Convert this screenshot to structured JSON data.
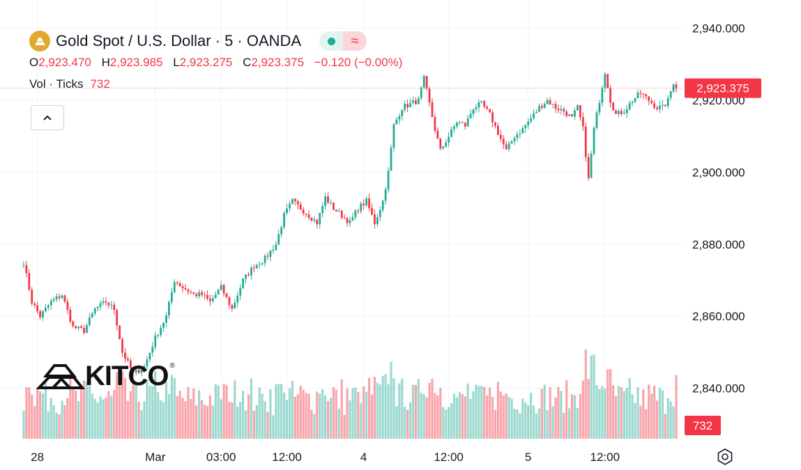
{
  "header": {
    "title": "Gold Spot / U.S. Dollar · 5 · OANDA",
    "ohlc": [
      {
        "label": "O",
        "value": "2,923.470"
      },
      {
        "label": "H",
        "value": "2,923.985"
      },
      {
        "label": "L",
        "value": "2,923.275"
      },
      {
        "label": "C",
        "value": "2,923.375"
      }
    ],
    "change": "−0.120 (−0.00%)",
    "volume_label": "Vol · Ticks",
    "volume_value": "732"
  },
  "logo": {
    "text": "KITCO",
    "reg": "®"
  },
  "colors": {
    "up": "#22ab94",
    "down": "#f23645",
    "grid": "#f0f3fa",
    "axis_text": "#131722"
  },
  "chart_data": {
    "type": "candlestick",
    "title": "Gold Spot / U.S. Dollar · 5 · OANDA",
    "ylim": [
      2826,
      2944
    ],
    "y_ticks": [
      {
        "value": 2940,
        "label": "2,940.000"
      },
      {
        "value": 2920,
        "label": "2,920.000"
      },
      {
        "value": 2900,
        "label": "2,900.000"
      },
      {
        "value": 2880,
        "label": "2,880.000"
      },
      {
        "value": 2860,
        "label": "2,860.000"
      },
      {
        "value": 2840,
        "label": "2,840.000"
      }
    ],
    "x_ticks": [
      {
        "index": 5,
        "label": "28"
      },
      {
        "index": 48,
        "label": "Mar"
      },
      {
        "index": 72,
        "label": "03:00"
      },
      {
        "index": 96,
        "label": "12:00"
      },
      {
        "index": 124,
        "label": "4"
      },
      {
        "index": 155,
        "label": "12:00"
      },
      {
        "index": 184,
        "label": "5"
      },
      {
        "index": 212,
        "label": "12:00"
      }
    ],
    "last_price": {
      "value": 2923.375,
      "label": "2,923.375"
    },
    "last_volume": {
      "value": 732,
      "label": "732"
    },
    "volume_max": 1600,
    "close_path": [
      [
        0,
        2875
      ],
      [
        3,
        2864
      ],
      [
        6,
        2860
      ],
      [
        10,
        2864
      ],
      [
        14,
        2866
      ],
      [
        18,
        2857
      ],
      [
        22,
        2856
      ],
      [
        26,
        2862
      ],
      [
        30,
        2864
      ],
      [
        33,
        2862
      ],
      [
        36,
        2850
      ],
      [
        40,
        2844
      ],
      [
        44,
        2846
      ],
      [
        48,
        2854
      ],
      [
        52,
        2860
      ],
      [
        55,
        2870
      ],
      [
        58,
        2868
      ],
      [
        62,
        2866
      ],
      [
        65,
        2866
      ],
      [
        68,
        2864
      ],
      [
        72,
        2868
      ],
      [
        76,
        2862
      ],
      [
        80,
        2870
      ],
      [
        84,
        2874
      ],
      [
        88,
        2876
      ],
      [
        92,
        2880
      ],
      [
        95,
        2888
      ],
      [
        98,
        2892
      ],
      [
        101,
        2890
      ],
      [
        104,
        2888
      ],
      [
        107,
        2886
      ],
      [
        110,
        2893
      ],
      [
        113,
        2890
      ],
      [
        116,
        2888
      ],
      [
        119,
        2886
      ],
      [
        122,
        2890
      ],
      [
        125,
        2892
      ],
      [
        128,
        2886
      ],
      [
        131,
        2892
      ],
      [
        133,
        2900
      ],
      [
        135,
        2913
      ],
      [
        138,
        2918
      ],
      [
        141,
        2919
      ],
      [
        144,
        2920
      ],
      [
        146,
        2926
      ],
      [
        148,
        2919
      ],
      [
        150,
        2912
      ],
      [
        152,
        2906
      ],
      [
        155,
        2910
      ],
      [
        158,
        2914
      ],
      [
        161,
        2913
      ],
      [
        164,
        2918
      ],
      [
        167,
        2919
      ],
      [
        170,
        2916
      ],
      [
        173,
        2911
      ],
      [
        176,
        2906
      ],
      [
        179,
        2910
      ],
      [
        182,
        2912
      ],
      [
        185,
        2915
      ],
      [
        188,
        2918
      ],
      [
        191,
        2920
      ],
      [
        194,
        2918
      ],
      [
        197,
        2917
      ],
      [
        200,
        2915
      ],
      [
        202,
        2918
      ],
      [
        204,
        2912
      ],
      [
        206,
        2898
      ],
      [
        208,
        2912
      ],
      [
        210,
        2920
      ],
      [
        212,
        2928
      ],
      [
        214,
        2920
      ],
      [
        216,
        2916
      ],
      [
        219,
        2917
      ],
      [
        222,
        2920
      ],
      [
        225,
        2922
      ],
      [
        228,
        2920
      ],
      [
        231,
        2918
      ],
      [
        233,
        2918
      ],
      [
        235,
        2920
      ],
      [
        237,
        2925
      ],
      [
        238,
        2923.375
      ]
    ]
  }
}
